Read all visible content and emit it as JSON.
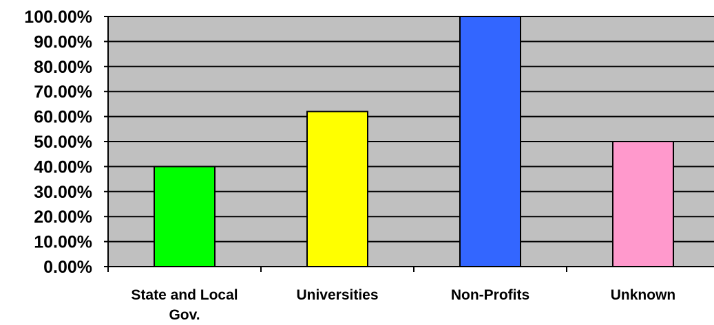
{
  "chart_data": {
    "type": "bar",
    "categories": [
      "State and Local Gov.",
      "Universities",
      "Non-Profits",
      "Unknown"
    ],
    "category_lines": [
      [
        "State and Local",
        "Gov."
      ],
      [
        "Universities"
      ],
      [
        "Non-Profits"
      ],
      [
        "Unknown"
      ]
    ],
    "values": [
      40,
      62,
      100,
      50
    ],
    "colors": [
      "#00ff00",
      "#ffff00",
      "#3366ff",
      "#ff99cc"
    ],
    "ylim": [
      0,
      100
    ],
    "yticks": [
      0,
      10,
      20,
      30,
      40,
      50,
      60,
      70,
      80,
      90,
      100
    ],
    "ytick_labels": [
      "0.00%",
      "10.00%",
      "20.00%",
      "30.00%",
      "40.00%",
      "50.00%",
      "60.00%",
      "70.00%",
      "80.00%",
      "90.00%",
      "100.00%"
    ],
    "plot_background": "#c0c0c0",
    "grid": true,
    "legend": "none"
  }
}
